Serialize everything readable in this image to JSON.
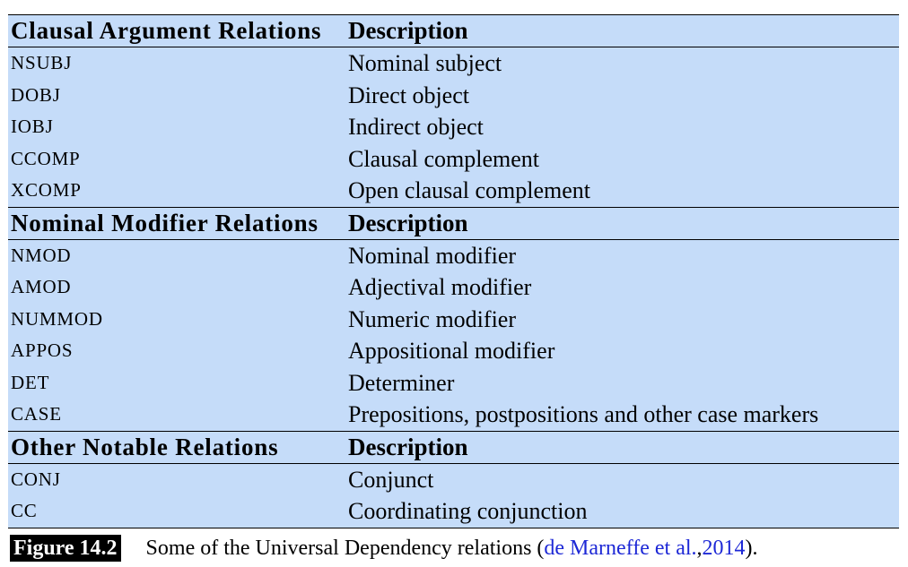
{
  "sections": [
    {
      "header": "Clausal Argument Relations",
      "desc_header": "Description",
      "rows": [
        {
          "code": "NSUBJ",
          "desc": "Nominal subject"
        },
        {
          "code": "DOBJ",
          "desc": "Direct object"
        },
        {
          "code": "IOBJ",
          "desc": "Indirect object"
        },
        {
          "code": "CCOMP",
          "desc": "Clausal complement"
        },
        {
          "code": "XCOMP",
          "desc": "Open clausal complement"
        }
      ]
    },
    {
      "header": "Nominal Modifier Relations",
      "desc_header": "Description",
      "rows": [
        {
          "code": "NMOD",
          "desc": "Nominal modifier"
        },
        {
          "code": "AMOD",
          "desc": "Adjectival modifier"
        },
        {
          "code": "NUMMOD",
          "desc": "Numeric modifier"
        },
        {
          "code": "APPOS",
          "desc": "Appositional modifier"
        },
        {
          "code": "DET",
          "desc": "Determiner"
        },
        {
          "code": "CASE",
          "desc": "Prepositions, postpositions and other case markers"
        }
      ]
    },
    {
      "header": "Other Notable Relations",
      "desc_header": "Description",
      "rows": [
        {
          "code": "CONJ",
          "desc": "Conjunct"
        },
        {
          "code": "CC",
          "desc": "Coordinating conjunction"
        }
      ]
    }
  ],
  "caption": {
    "label": "Figure 14.2",
    "text": "Some of the Universal Dependency relations (",
    "cite_authors": "de Marneffe et al.",
    "cite_sep": ", ",
    "cite_year": "2014",
    "text_end": ")."
  },
  "colors": {
    "table_bg": "#c5dcf9",
    "cite_link": "#1d28d6",
    "label_bg": "#000000"
  }
}
